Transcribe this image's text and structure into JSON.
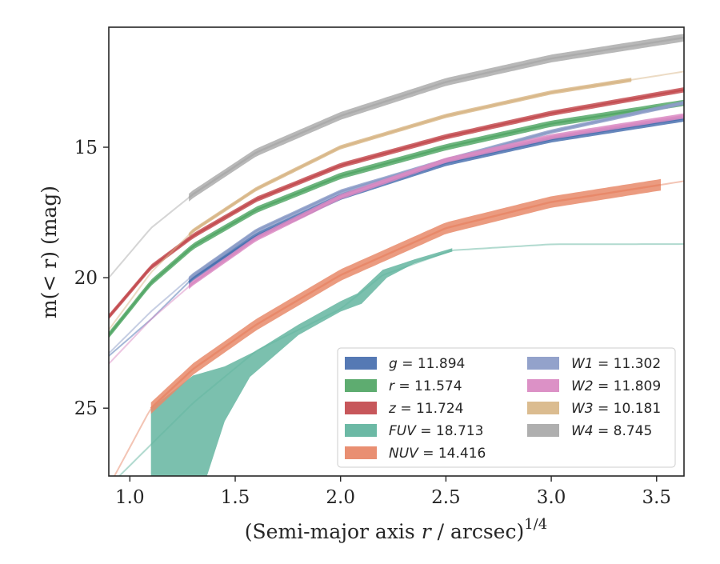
{
  "chart_data": {
    "type": "line",
    "xlabel": "(Semi-major axis r / arcsec)",
    "xlabel_italic_r": "r",
    "xlabel_sup": "1/4",
    "ylabel": "m(< r) (mag)",
    "xlim": [
      0.9,
      3.63
    ],
    "ylim": [
      27.6,
      10.4
    ],
    "y_inverted": true,
    "grid": false,
    "legend_placement": "lower-right",
    "x_ticks": [
      1.0,
      1.5,
      2.0,
      2.5,
      3.0,
      3.5
    ],
    "x_tick_labels": [
      "1.0",
      "1.5",
      "2.0",
      "2.5",
      "3.0",
      "3.5"
    ],
    "y_ticks": [
      15,
      20,
      25
    ],
    "y_tick_labels": [
      "15",
      "20",
      "25"
    ],
    "series": [
      {
        "name": "g",
        "legend_label": "g = 11.894",
        "color": "#4c72b0",
        "band": 0.12,
        "x_full": [
          0.9,
          1.1,
          1.3,
          1.6,
          2.0,
          2.5,
          3.0,
          3.63
        ],
        "y_full": [
          23.0,
          21.6,
          20.0,
          18.4,
          16.9,
          15.6,
          14.7,
          13.9
        ],
        "x_dense": [
          1.28,
          3.63
        ]
      },
      {
        "name": "r",
        "legend_label": "r = 11.574",
        "color": "#55a868",
        "band": 0.12,
        "x_full": [
          0.9,
          1.1,
          1.3,
          1.6,
          2.0,
          2.5,
          3.0,
          3.63
        ],
        "y_full": [
          22.2,
          20.2,
          18.8,
          17.4,
          16.1,
          15.0,
          14.1,
          13.3
        ],
        "x_dense": [
          0.9,
          3.63
        ]
      },
      {
        "name": "z",
        "legend_label": "z = 11.724",
        "color": "#c44e52",
        "band": 0.1,
        "x_full": [
          0.9,
          1.1,
          1.3,
          1.6,
          2.0,
          2.5,
          3.0,
          3.63
        ],
        "y_full": [
          21.5,
          19.6,
          18.4,
          17.0,
          15.7,
          14.6,
          13.7,
          12.8
        ],
        "x_dense": [
          0.9,
          3.63
        ]
      },
      {
        "name": "FUV",
        "legend_label": "FUV = 18.713",
        "color": "#64b5a0",
        "band": 0,
        "x_full": [
          0.9,
          1.3,
          1.6,
          2.0,
          2.2,
          2.53,
          3.0,
          3.63
        ],
        "y_full": [
          28.0,
          24.8,
          22.8,
          21.2,
          19.9,
          18.95,
          18.72,
          18.71
        ],
        "x_dense": [
          1.1,
          2.53
        ],
        "upper": [
          [
            1.1,
            25.0
          ],
          [
            1.3,
            23.75
          ],
          [
            1.45,
            23.4
          ],
          [
            1.6,
            22.8
          ],
          [
            1.8,
            21.8
          ],
          [
            2.0,
            20.9
          ],
          [
            2.08,
            20.6
          ],
          [
            2.2,
            19.7
          ],
          [
            2.35,
            19.3
          ],
          [
            2.53,
            18.87
          ]
        ],
        "lower": [
          [
            1.1,
            28.0
          ],
          [
            1.35,
            28.0
          ],
          [
            1.45,
            25.5
          ],
          [
            1.57,
            23.8
          ],
          [
            1.8,
            22.2
          ],
          [
            2.0,
            21.3
          ],
          [
            2.1,
            21.0
          ],
          [
            2.22,
            20.0
          ],
          [
            2.35,
            19.45
          ],
          [
            2.53,
            19.0
          ]
        ]
      },
      {
        "name": "NUV",
        "legend_label": "NUV = 14.416",
        "color": "#e8896a",
        "band": 0.22,
        "x_full": [
          0.9,
          1.1,
          1.3,
          1.6,
          2.0,
          2.5,
          3.0,
          3.63
        ],
        "y_full": [
          28.0,
          25.0,
          23.5,
          21.8,
          19.9,
          18.1,
          17.1,
          16.3
        ],
        "x_dense": [
          1.1,
          3.52
        ]
      },
      {
        "name": "W1",
        "legend_label": "W1 = 11.302",
        "color": "#8d9dc8",
        "band": 0.08,
        "x_full": [
          0.9,
          1.1,
          1.3,
          1.6,
          2.0,
          2.5,
          3.0,
          3.63
        ],
        "y_full": [
          22.9,
          21.3,
          19.9,
          18.2,
          16.7,
          15.5,
          14.4,
          13.3
        ],
        "x_dense": [
          1.28,
          3.63
        ]
      },
      {
        "name": "W2",
        "legend_label": "W2 = 11.809",
        "color": "#da8bc3",
        "band": 0.1,
        "x_full": [
          0.9,
          1.1,
          1.3,
          1.6,
          2.0,
          2.5,
          3.0,
          3.63
        ],
        "y_full": [
          23.3,
          21.6,
          20.2,
          18.5,
          16.9,
          15.5,
          14.6,
          13.8
        ],
        "x_dense": [
          1.28,
          3.63
        ]
      },
      {
        "name": "W3",
        "legend_label": "W3 = 10.181",
        "color": "#d9b88a",
        "band": 0.08,
        "x_full": [
          0.9,
          1.1,
          1.3,
          1.6,
          2.0,
          2.5,
          3.0,
          3.63
        ],
        "y_full": [
          22.0,
          19.8,
          18.2,
          16.6,
          15.0,
          13.8,
          12.9,
          12.1
        ],
        "x_dense": [
          1.28,
          3.38
        ]
      },
      {
        "name": "W4",
        "legend_label": "W4 = 8.745",
        "color": "#ababab",
        "band": 0.15,
        "x_full": [
          0.9,
          1.1,
          1.3,
          1.6,
          2.0,
          2.5,
          3.0,
          3.63
        ],
        "y_full": [
          20.0,
          18.1,
          16.8,
          15.2,
          13.8,
          12.5,
          11.6,
          10.8
        ],
        "x_dense": [
          1.28,
          3.63
        ]
      }
    ]
  }
}
